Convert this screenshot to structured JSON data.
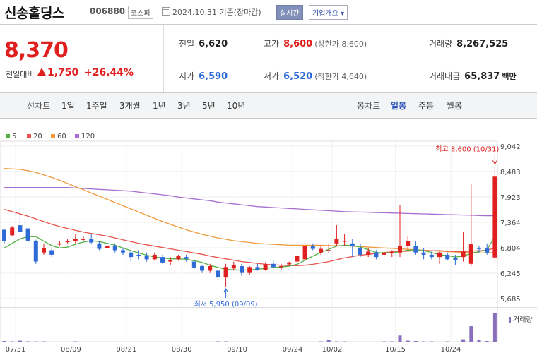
{
  "header": {
    "company_name": "신송홀딩스",
    "stock_code": "006880",
    "market_badge": "코스피",
    "date_info": "2024.10.31 기준(장마감)",
    "realtime_button": "실시간",
    "company_info_button": "기업개요 ▾"
  },
  "price": {
    "current": "8,370",
    "change_label": "전일대비",
    "change_amount": "1,750",
    "change_percent": "+26.44%"
  },
  "stats": {
    "prev_close": {
      "label": "전일",
      "value": "6,620"
    },
    "high": {
      "label": "고가",
      "value": "8,600",
      "sub": "(상한가 8,600)"
    },
    "volume": {
      "label": "거래량",
      "value": "8,267,525"
    },
    "open": {
      "label": "시가",
      "value": "6,590"
    },
    "low": {
      "label": "저가",
      "value": "6,520",
      "sub": "(하한가 4,640)"
    },
    "trade_value": {
      "label": "거래대금",
      "value": "65,837",
      "unit": "백만"
    }
  },
  "toolbar": {
    "line_chart": "선차트",
    "periods": [
      "1일",
      "1주일",
      "3개월",
      "1년",
      "3년",
      "5년",
      "10년"
    ],
    "candle_chart": "봉차트",
    "candle_periods": [
      "일봉",
      "주봉",
      "월봉"
    ],
    "selected_candle": "일봉"
  },
  "colors": {
    "up": "#e01f1f",
    "down": "#2f6bd6",
    "ma5": "#53b043",
    "ma20": "#e5544d",
    "ma60": "#ef9a3a",
    "ma120": "#a66ed0",
    "volume": "#8a6fbf"
  },
  "chart_data": {
    "type": "candlestick",
    "legend": [
      {
        "name": "5",
        "color": "#53b043"
      },
      {
        "name": "20",
        "color": "#e5544d"
      },
      {
        "name": "60",
        "color": "#ef9a3a"
      },
      {
        "name": "120",
        "color": "#a66ed0"
      }
    ],
    "yticks": [
      "9,042",
      "8,483",
      "7,923",
      "7,364",
      "6,804",
      "6,245",
      "5,685"
    ],
    "ytick_values": [
      9042,
      8483,
      7923,
      7364,
      6804,
      6245,
      5685
    ],
    "ylim": [
      5685,
      9042
    ],
    "xticks": [
      "07/31",
      "08/09",
      "08/21",
      "08/30",
      "09/10",
      "09/24",
      "10/02",
      "10/15",
      "10/24"
    ],
    "xtick_index": [
      0,
      7,
      14,
      21,
      28,
      35,
      40,
      48,
      55
    ],
    "high_annotation": "최고 8,600 (10/31)",
    "low_annotation": "최저 5,950 (09/09)",
    "volume_label": "거래량",
    "candles": [
      [
        7200,
        7230,
        6900,
        6950
      ],
      [
        7080,
        7280,
        7050,
        7250
      ],
      [
        7300,
        7700,
        7150,
        7150
      ],
      [
        7230,
        7250,
        6900,
        6960
      ],
      [
        6950,
        6980,
        6450,
        6500
      ],
      [
        6700,
        6900,
        6650,
        6800
      ],
      [
        6750,
        6780,
        6600,
        6650
      ],
      [
        6900,
        6950,
        6850,
        6900
      ],
      [
        6950,
        7000,
        6900,
        6950
      ],
      [
        6950,
        7100,
        6900,
        7000
      ],
      [
        7000,
        7050,
        6950,
        7000
      ],
      [
        7000,
        7100,
        6900,
        6920
      ],
      [
        6900,
        6950,
        6750,
        6780
      ],
      [
        6800,
        6900,
        6780,
        6850
      ],
      [
        6850,
        6900,
        6700,
        6750
      ],
      [
        6750,
        6800,
        6650,
        6700
      ],
      [
        6700,
        6750,
        6500,
        6600
      ],
      [
        6650,
        6750,
        6550,
        6620
      ],
      [
        6620,
        6700,
        6500,
        6550
      ],
      [
        6550,
        6700,
        6520,
        6650
      ],
      [
        6600,
        6650,
        6450,
        6480
      ],
      [
        6500,
        6600,
        6420,
        6530
      ],
      [
        6550,
        6650,
        6520,
        6620
      ],
      [
        6600,
        6650,
        6500,
        6560
      ],
      [
        6500,
        6550,
        6330,
        6370
      ],
      [
        6400,
        6420,
        6250,
        6300
      ],
      [
        6300,
        6450,
        6250,
        6400
      ],
      [
        6300,
        6320,
        6100,
        6150
      ],
      [
        6150,
        6450,
        5950,
        6380
      ],
      [
        6350,
        6500,
        6300,
        6420
      ],
      [
        6400,
        6450,
        6180,
        6250
      ],
      [
        6250,
        6400,
        6200,
        6380
      ],
      [
        6380,
        6450,
        6300,
        6320
      ],
      [
        6320,
        6480,
        6300,
        6440
      ],
      [
        6450,
        6520,
        6350,
        6380
      ],
      [
        6380,
        6450,
        6320,
        6400
      ],
      [
        6440,
        6500,
        6400,
        6480
      ],
      [
        6500,
        6650,
        6480,
        6620
      ],
      [
        6550,
        6900,
        6520,
        6850
      ],
      [
        6850,
        6900,
        6750,
        6780
      ],
      [
        6700,
        6850,
        6650,
        6780
      ],
      [
        6750,
        6900,
        6680,
        6750
      ],
      [
        6900,
        7300,
        6850,
        7000
      ],
      [
        6950,
        7100,
        6850,
        6960
      ],
      [
        6900,
        7000,
        6600,
        6850
      ],
      [
        6800,
        6900,
        6600,
        6650
      ],
      [
        6650,
        6800,
        6600,
        6720
      ],
      [
        6700,
        6750,
        6550,
        6600
      ],
      [
        6650,
        6700,
        6600,
        6680
      ],
      [
        6680,
        6750,
        6600,
        6720
      ],
      [
        6700,
        7750,
        6600,
        6850
      ],
      [
        6850,
        7050,
        6750,
        6950
      ],
      [
        6850,
        6950,
        6650,
        6700
      ],
      [
        6700,
        6800,
        6550,
        6650
      ],
      [
        6650,
        6720,
        6550,
        6600
      ],
      [
        6600,
        6720,
        6450,
        6700
      ],
      [
        6650,
        6700,
        6520,
        6550
      ],
      [
        6580,
        6650,
        6420,
        6530
      ],
      [
        6600,
        7150,
        6500,
        6720
      ],
      [
        6450,
        8200,
        6400,
        6880
      ],
      [
        6800,
        6850,
        6700,
        6780
      ],
      [
        6800,
        6900,
        6650,
        6700
      ],
      [
        6590,
        8600,
        6520,
        8370
      ]
    ],
    "volumes": [
      2,
      1,
      3,
      1,
      1,
      1,
      0,
      0,
      0,
      1,
      0,
      0,
      0,
      0,
      0,
      0,
      0,
      0,
      0,
      0,
      0,
      0,
      0,
      0,
      0,
      0,
      0,
      1,
      1,
      0,
      0,
      0,
      0,
      0,
      0,
      0,
      0,
      0,
      0,
      0,
      1,
      6,
      1,
      1,
      0,
      0,
      0,
      0,
      1,
      1,
      18,
      3,
      2,
      1,
      1,
      0,
      1,
      0,
      7,
      45,
      5,
      2,
      82
    ],
    "ma5": [
      6800,
      6900,
      7000,
      7050,
      7050,
      6950,
      6850,
      6800,
      6820,
      6880,
      6930,
      6960,
      6940,
      6900,
      6860,
      6800,
      6740,
      6690,
      6640,
      6600,
      6580,
      6560,
      6560,
      6550,
      6520,
      6480,
      6420,
      6370,
      6330,
      6320,
      6310,
      6320,
      6330,
      6350,
      6370,
      6380,
      6400,
      6440,
      6530,
      6620,
      6700,
      6770,
      6840,
      6860,
      6850,
      6820,
      6760,
      6700,
      6690,
      6690,
      6720,
      6750,
      6760,
      6740,
      6700,
      6650,
      6630,
      6600,
      6620,
      6680,
      6720,
      6760,
      7050
    ],
    "ma20": [
      7650,
      7600,
      7550,
      7500,
      7440,
      7380,
      7320,
      7270,
      7230,
      7190,
      7150,
      7120,
      7090,
      7060,
      7020,
      6980,
      6940,
      6900,
      6870,
      6840,
      6810,
      6780,
      6750,
      6720,
      6690,
      6660,
      6620,
      6590,
      6560,
      6530,
      6500,
      6480,
      6460,
      6440,
      6430,
      6420,
      6410,
      6410,
      6420,
      6440,
      6470,
      6500,
      6540,
      6580,
      6610,
      6640,
      6660,
      6680,
      6700,
      6710,
      6720,
      6730,
      6740,
      6740,
      6740,
      6740,
      6730,
      6720,
      6720,
      6730,
      6740,
      6750,
      6800
    ],
    "ma60": [
      8550,
      8540,
      8530,
      8500,
      8460,
      8410,
      8350,
      8290,
      8220,
      8150,
      8080,
      8010,
      7940,
      7870,
      7800,
      7730,
      7660,
      7590,
      7520,
      7450,
      7380,
      7320,
      7260,
      7200,
      7150,
      7100,
      7060,
      7020,
      6990,
      6960,
      6940,
      6920,
      6900,
      6890,
      6880,
      6870,
      6860,
      6860,
      6860,
      6860,
      6860,
      6850,
      6850,
      6850,
      6840,
      6830,
      6820,
      6810,
      6800,
      6790,
      6780,
      6770,
      6760,
      6750,
      6740,
      6730,
      6720,
      6710,
      6700,
      6700,
      6690,
      6690,
      6700
    ],
    "ma120": [
      8130,
      8130,
      8130,
      8130,
      8130,
      8130,
      8130,
      8130,
      8130,
      8120,
      8110,
      8100,
      8090,
      8080,
      8070,
      8060,
      8050,
      8030,
      8010,
      7990,
      7970,
      7950,
      7920,
      7900,
      7880,
      7860,
      7840,
      7810,
      7790,
      7770,
      7750,
      7730,
      7710,
      7700,
      7690,
      7680,
      7670,
      7660,
      7650,
      7640,
      7630,
      7620,
      7610,
      7600,
      7595,
      7590,
      7585,
      7580,
      7575,
      7570,
      7565,
      7560,
      7555,
      7550,
      7545,
      7540,
      7535,
      7530,
      7525,
      7520,
      7515,
      7510,
      7510
    ]
  }
}
